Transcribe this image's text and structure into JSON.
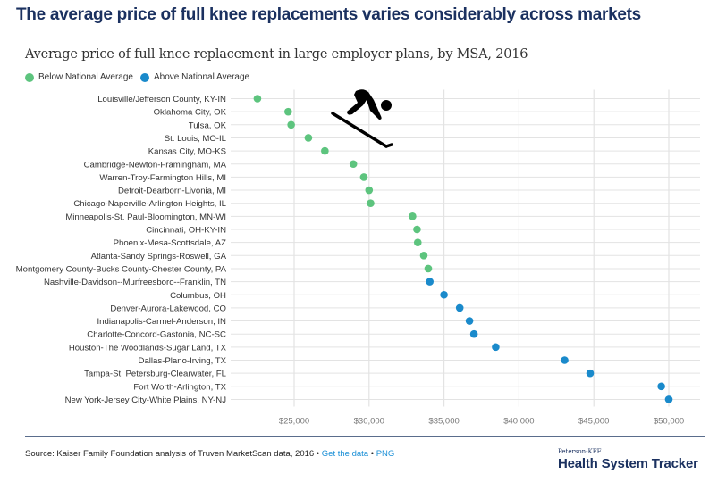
{
  "header": {
    "title": "The average price of full knee replacements varies considerably across markets"
  },
  "colors": {
    "below": "#5dc47e",
    "above": "#1a8acb",
    "title": "#1b3160",
    "link": "#1a8fd6",
    "grid": "#e3e3e3"
  },
  "chart_data": {
    "type": "scatter",
    "title": "Average price of full knee replacement in large employer plans, by MSA, 2016",
    "xlabel": "",
    "ylabel": "",
    "xlim": [
      21000,
      51000
    ],
    "xticks": [
      25000,
      30000,
      35000,
      40000,
      45000,
      50000
    ],
    "xtick_labels": [
      "$25,000",
      "$30,000",
      "$35,000",
      "$40,000",
      "$45,000",
      "$50,000"
    ],
    "grid": true,
    "legend_position": "top-left",
    "legend": [
      {
        "key": "below",
        "label": "Below National Average"
      },
      {
        "key": "above",
        "label": "Above National Average"
      }
    ],
    "points": [
      {
        "label": "Louisville/Jefferson County, KY-IN",
        "value": 22550,
        "group": "below"
      },
      {
        "label": "Oklahoma City, OK",
        "value": 24600,
        "group": "below"
      },
      {
        "label": "Tulsa, OK",
        "value": 24800,
        "group": "below"
      },
      {
        "label": "St. Louis, MO-IL",
        "value": 25950,
        "group": "below"
      },
      {
        "label": "Kansas City, MO-KS",
        "value": 27050,
        "group": "below"
      },
      {
        "label": "Cambridge-Newton-Framingham, MA",
        "value": 28950,
        "group": "below"
      },
      {
        "label": "Warren-Troy-Farmington Hills, MI",
        "value": 29650,
        "group": "below"
      },
      {
        "label": "Detroit-Dearborn-Livonia, MI",
        "value": 30000,
        "group": "below"
      },
      {
        "label": "Chicago-Naperville-Arlington Heights, IL",
        "value": 30100,
        "group": "below"
      },
      {
        "label": "Minneapolis-St. Paul-Bloomington, MN-WI",
        "value": 32900,
        "group": "below"
      },
      {
        "label": "Cincinnati, OH-KY-IN",
        "value": 33200,
        "group": "below"
      },
      {
        "label": "Phoenix-Mesa-Scottsdale, AZ",
        "value": 33250,
        "group": "below"
      },
      {
        "label": "Atlanta-Sandy Springs-Roswell, GA",
        "value": 33650,
        "group": "below"
      },
      {
        "label": "Montgomery County-Bucks County-Chester County, PA",
        "value": 33950,
        "group": "below"
      },
      {
        "label": "Nashville-Davidson--Murfreesboro--Franklin, TN",
        "value": 34050,
        "group": "above"
      },
      {
        "label": "Columbus, OH",
        "value": 35000,
        "group": "above"
      },
      {
        "label": "Denver-Aurora-Lakewood, CO",
        "value": 36050,
        "group": "above"
      },
      {
        "label": "Indianapolis-Carmel-Anderson, IN",
        "value": 36700,
        "group": "above"
      },
      {
        "label": "Charlotte-Concord-Gastonia, NC-SC",
        "value": 37000,
        "group": "above"
      },
      {
        "label": "Houston-The Woodlands-Sugar Land, TX",
        "value": 38450,
        "group": "above"
      },
      {
        "label": "Dallas-Plano-Irving, TX",
        "value": 43050,
        "group": "above"
      },
      {
        "label": "Tampa-St. Petersburg-Clearwater, FL",
        "value": 44750,
        "group": "above"
      },
      {
        "label": "Fort Worth-Arlington, TX",
        "value": 49500,
        "group": "above"
      },
      {
        "label": "New York-Jersey City-White Plains, NY-NJ",
        "value": 50000,
        "group": "above"
      }
    ]
  },
  "footer": {
    "source": "Source: Kaiser Family Foundation analysis of Truven MarketScan data, 2016",
    "separator": " • ",
    "get_data_link": "Get the data",
    "png_link": "PNG",
    "brand_small": "Peterson-KFF",
    "brand_big": "Health System Tracker"
  },
  "overlay": {
    "icon": "skier-icon"
  }
}
